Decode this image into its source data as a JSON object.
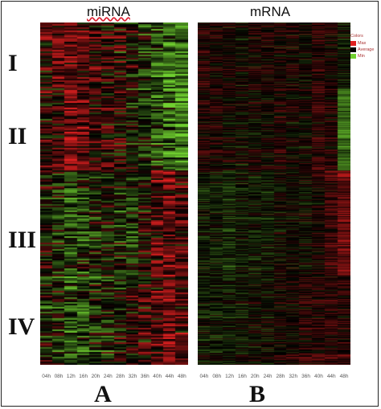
{
  "panel_a": {
    "title": "miRNA",
    "letter": "A"
  },
  "panel_b": {
    "title": "mRNA",
    "letter": "B"
  },
  "clusters": [
    "I",
    "II",
    "III",
    "IV"
  ],
  "legend": {
    "title": "Colors",
    "items": [
      {
        "label": "Max",
        "color": "#e02020"
      },
      {
        "label": "Average",
        "color": "#000000"
      },
      {
        "label": "Min",
        "color": "#70d030"
      }
    ]
  },
  "chart_data": [
    {
      "type": "heatmap",
      "title": "miRNA",
      "x": [
        "04h",
        "08h",
        "12h",
        "16h",
        "20h",
        "24h",
        "28h",
        "32h",
        "36h",
        "40h",
        "44h",
        "48h"
      ],
      "row_groups": [
        "I",
        "II",
        "III",
        "IV"
      ],
      "group_profiles": [
        [
          0.2,
          0.4,
          0.4,
          0.3,
          0.2,
          0.1,
          0.1,
          0.0,
          -0.2,
          -0.4,
          -0.6,
          -0.5
        ],
        [
          0.2,
          0.3,
          0.6,
          0.5,
          0.3,
          0.2,
          0.1,
          0.0,
          -0.1,
          -0.3,
          -0.5,
          -0.6
        ],
        [
          0.0,
          -0.1,
          -0.3,
          -0.2,
          -0.1,
          0.0,
          -0.1,
          -0.2,
          0.1,
          0.4,
          0.5,
          0.3
        ],
        [
          -0.1,
          -0.1,
          -0.3,
          -0.3,
          -0.2,
          -0.1,
          0.0,
          0.1,
          0.2,
          0.3,
          0.5,
          0.3
        ]
      ],
      "color_scale": {
        "max": "#e02020",
        "average": "#000000",
        "min": "#70d030"
      }
    },
    {
      "type": "heatmap",
      "title": "mRNA",
      "x": [
        "04h",
        "08h",
        "12h",
        "16h",
        "20h",
        "24h",
        "28h",
        "32h",
        "36h",
        "40h",
        "44h",
        "48h"
      ],
      "row_groups": [
        "I",
        "II",
        "III",
        "IV"
      ],
      "group_profiles": [
        [
          0.2,
          0.1,
          0.1,
          0.0,
          0.1,
          0.1,
          0.1,
          0.1,
          0.0,
          0.2,
          0.1,
          -0.1
        ],
        [
          0.1,
          0.1,
          0.0,
          0.0,
          0.0,
          0.0,
          0.1,
          0.0,
          0.0,
          0.2,
          0.1,
          -0.6
        ],
        [
          -0.1,
          -0.1,
          -0.2,
          -0.1,
          -0.1,
          -0.1,
          0.0,
          0.0,
          0.0,
          0.1,
          0.3,
          0.5
        ],
        [
          -0.1,
          -0.1,
          -0.1,
          -0.1,
          0.0,
          0.0,
          0.1,
          0.1,
          0.2,
          0.2,
          0.2,
          0.2
        ]
      ],
      "color_scale": {
        "max": "#e02020",
        "average": "#000000",
        "min": "#70d030"
      }
    }
  ]
}
